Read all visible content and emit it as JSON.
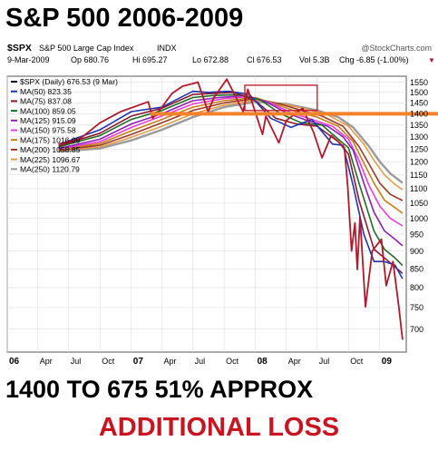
{
  "title": "S&P 500 2006-2009",
  "chart_header": {
    "symbol": "$SPX",
    "name": "S&P 500 Large Cap Index",
    "exchange": "INDX",
    "watermark": "@StockCharts.com",
    "date": "9-Mar-2009",
    "op": "Op 680.76",
    "hi": "Hi 695.27",
    "lo": "Lo 672.88",
    "cl": "Cl 676.53",
    "vol": "Vol 5.3B",
    "chg": "Chg -6.85 (-1.00%)",
    "chg_arrow": "▼"
  },
  "legend": [
    {
      "label": "$SPX (Daily) 676.53 (9 Mar)",
      "color": "#000000"
    },
    {
      "label": "MA(50) 823.35",
      "color": "#1f35b4"
    },
    {
      "label": "MA(75) 837.08",
      "color": "#8b1a2e"
    },
    {
      "label": "MA(100) 859.05",
      "color": "#1e6b25"
    },
    {
      "label": "MA(125) 915.09",
      "color": "#8a22b0"
    },
    {
      "label": "MA(150) 975.58",
      "color": "#e63fd8"
    },
    {
      "label": "MA(175) 1016.09",
      "color": "#c77c1a"
    },
    {
      "label": "MA(200) 1058.85",
      "color": "#9a3a2a"
    },
    {
      "label": "MA(225) 1096.67",
      "color": "#e59a47"
    },
    {
      "label": "MA(250) 1120.79",
      "color": "#9a9a9a"
    }
  ],
  "headline": "1400 TO 675  51% APPROX",
  "subhead": "ADDITIONAL LOSS",
  "colors": {
    "price": "#b2182b",
    "highlight_line": "#f5822a",
    "highlight_box": "#c0122a",
    "grid": "#dddddd",
    "subhead": "#c81522"
  },
  "chart_data": {
    "type": "line",
    "y_scale": "log",
    "ylim": [
      650,
      1580
    ],
    "y_ticks": [
      700,
      750,
      800,
      850,
      900,
      950,
      1000,
      1050,
      1100,
      1150,
      1200,
      1250,
      1300,
      1350,
      1400,
      1450,
      1500,
      1550
    ],
    "x_range": [
      "2006-01-01",
      "2009-03-20"
    ],
    "x_ticks": [
      {
        "label": "06",
        "date": "2006-01-01",
        "bold": true
      },
      {
        "label": "Apr",
        "date": "2006-04-01",
        "bold": false
      },
      {
        "label": "Jul",
        "date": "2006-07-01",
        "bold": false
      },
      {
        "label": "Oct",
        "date": "2006-10-01",
        "bold": false
      },
      {
        "label": "07",
        "date": "2007-01-01",
        "bold": true
      },
      {
        "label": "Apr",
        "date": "2007-04-01",
        "bold": false
      },
      {
        "label": "Jul",
        "date": "2007-07-01",
        "bold": false
      },
      {
        "label": "Oct",
        "date": "2007-10-01",
        "bold": false
      },
      {
        "label": "08",
        "date": "2008-01-01",
        "bold": true
      },
      {
        "label": "Apr",
        "date": "2008-04-01",
        "bold": false
      },
      {
        "label": "Jul",
        "date": "2008-07-01",
        "bold": false
      },
      {
        "label": "Oct",
        "date": "2008-10-01",
        "bold": false
      },
      {
        "label": "09",
        "date": "2009-01-01",
        "bold": true
      }
    ],
    "series": [
      {
        "name": "$SPX (Daily)",
        "color": "#b2182b",
        "width": 1.8,
        "points": [
          [
            "2006-06-01",
            1270
          ],
          [
            "2006-08-01",
            1290
          ],
          [
            "2006-10-01",
            1360
          ],
          [
            "2006-12-01",
            1410
          ],
          [
            "2007-02-20",
            1455
          ],
          [
            "2007-03-05",
            1380
          ],
          [
            "2007-04-01",
            1430
          ],
          [
            "2007-05-01",
            1495
          ],
          [
            "2007-06-01",
            1530
          ],
          [
            "2007-07-16",
            1550
          ],
          [
            "2007-08-15",
            1410
          ],
          [
            "2007-09-01",
            1475
          ],
          [
            "2007-10-09",
            1565
          ],
          [
            "2007-11-26",
            1410
          ],
          [
            "2007-12-10",
            1515
          ],
          [
            "2008-01-22",
            1310
          ],
          [
            "2008-02-01",
            1390
          ],
          [
            "2008-03-10",
            1275
          ],
          [
            "2008-04-01",
            1370
          ],
          [
            "2008-05-19",
            1425
          ],
          [
            "2008-06-20",
            1320
          ],
          [
            "2008-07-15",
            1215
          ],
          [
            "2008-08-11",
            1305
          ],
          [
            "2008-09-01",
            1280
          ],
          [
            "2008-09-19",
            1255
          ],
          [
            "2008-09-29",
            1105
          ],
          [
            "2008-10-10",
            900
          ],
          [
            "2008-10-20",
            985
          ],
          [
            "2008-10-27",
            848
          ],
          [
            "2008-11-04",
            1005
          ],
          [
            "2008-11-20",
            752
          ],
          [
            "2008-12-10",
            900
          ],
          [
            "2009-01-06",
            935
          ],
          [
            "2009-01-20",
            805
          ],
          [
            "2009-02-09",
            870
          ],
          [
            "2009-02-26",
            752
          ],
          [
            "2009-03-09",
            676.53
          ]
        ]
      },
      {
        "name": "MA(50)",
        "color": "#1f35b4",
        "width": 1.6,
        "points": [
          [
            "2006-06-01",
            1268
          ],
          [
            "2006-10-01",
            1330
          ],
          [
            "2007-01-01",
            1410
          ],
          [
            "2007-04-01",
            1430
          ],
          [
            "2007-07-01",
            1505
          ],
          [
            "2007-08-15",
            1500
          ],
          [
            "2007-10-15",
            1505
          ],
          [
            "2007-12-15",
            1490
          ],
          [
            "2008-02-15",
            1380
          ],
          [
            "2008-04-15",
            1340
          ],
          [
            "2008-06-15",
            1375
          ],
          [
            "2008-08-15",
            1270
          ],
          [
            "2008-09-15",
            1265
          ],
          [
            "2008-10-15",
            1110
          ],
          [
            "2008-11-15",
            950
          ],
          [
            "2008-12-15",
            870
          ],
          [
            "2009-01-15",
            870
          ],
          [
            "2009-02-15",
            860
          ],
          [
            "2009-03-09",
            823.35
          ]
        ]
      },
      {
        "name": "MA(75)",
        "color": "#8b1a2e",
        "width": 1.6,
        "points": [
          [
            "2006-06-01",
            1262
          ],
          [
            "2006-10-01",
            1315
          ],
          [
            "2007-01-01",
            1390
          ],
          [
            "2007-04-01",
            1425
          ],
          [
            "2007-07-01",
            1490
          ],
          [
            "2007-09-01",
            1495
          ],
          [
            "2007-11-01",
            1500
          ],
          [
            "2008-01-01",
            1460
          ],
          [
            "2008-03-01",
            1380
          ],
          [
            "2008-05-01",
            1355
          ],
          [
            "2008-07-01",
            1345
          ],
          [
            "2008-09-01",
            1280
          ],
          [
            "2008-10-01",
            1230
          ],
          [
            "2008-11-01",
            1060
          ],
          [
            "2008-12-15",
            905
          ],
          [
            "2009-01-15",
            880
          ],
          [
            "2009-02-15",
            855
          ],
          [
            "2009-03-09",
            837.08
          ]
        ]
      },
      {
        "name": "MA(100)",
        "color": "#1e6b25",
        "width": 1.6,
        "points": [
          [
            "2006-06-01",
            1258
          ],
          [
            "2006-10-01",
            1305
          ],
          [
            "2007-01-01",
            1375
          ],
          [
            "2007-04-01",
            1415
          ],
          [
            "2007-07-01",
            1475
          ],
          [
            "2007-09-01",
            1485
          ],
          [
            "2007-11-15",
            1490
          ],
          [
            "2008-01-15",
            1465
          ],
          [
            "2008-03-15",
            1400
          ],
          [
            "2008-05-15",
            1360
          ],
          [
            "2008-07-15",
            1350
          ],
          [
            "2008-09-01",
            1290
          ],
          [
            "2008-10-01",
            1255
          ],
          [
            "2008-11-01",
            1120
          ],
          [
            "2008-12-15",
            960
          ],
          [
            "2009-01-15",
            905
          ],
          [
            "2009-02-15",
            880
          ],
          [
            "2009-03-09",
            859.05
          ]
        ]
      },
      {
        "name": "MA(125)",
        "color": "#8a22b0",
        "width": 1.6,
        "points": [
          [
            "2006-06-01",
            1252
          ],
          [
            "2006-10-01",
            1290
          ],
          [
            "2007-01-01",
            1355
          ],
          [
            "2007-04-01",
            1400
          ],
          [
            "2007-07-01",
            1460
          ],
          [
            "2007-09-15",
            1475
          ],
          [
            "2007-12-01",
            1485
          ],
          [
            "2008-02-01",
            1455
          ],
          [
            "2008-04-01",
            1405
          ],
          [
            "2008-06-01",
            1370
          ],
          [
            "2008-08-01",
            1345
          ],
          [
            "2008-09-15",
            1300
          ],
          [
            "2008-10-15",
            1245
          ],
          [
            "2008-11-15",
            1120
          ],
          [
            "2008-12-15",
            1020
          ],
          [
            "2009-01-15",
            960
          ],
          [
            "2009-02-15",
            935
          ],
          [
            "2009-03-09",
            915.09
          ]
        ]
      },
      {
        "name": "MA(150)",
        "color": "#e63fd8",
        "width": 1.6,
        "points": [
          [
            "2006-06-01",
            1250
          ],
          [
            "2006-10-01",
            1280
          ],
          [
            "2007-01-01",
            1340
          ],
          [
            "2007-04-01",
            1390
          ],
          [
            "2007-07-01",
            1445
          ],
          [
            "2007-10-01",
            1470
          ],
          [
            "2007-12-15",
            1480
          ],
          [
            "2008-02-15",
            1450
          ],
          [
            "2008-04-15",
            1405
          ],
          [
            "2008-06-15",
            1375
          ],
          [
            "2008-08-15",
            1345
          ],
          [
            "2008-10-01",
            1290
          ],
          [
            "2008-11-01",
            1205
          ],
          [
            "2008-12-01",
            1110
          ],
          [
            "2009-01-01",
            1040
          ],
          [
            "2009-02-01",
            1000
          ],
          [
            "2009-03-09",
            975.58
          ]
        ]
      },
      {
        "name": "MA(175)",
        "color": "#c77c1a",
        "width": 1.6,
        "points": [
          [
            "2006-06-01",
            1248
          ],
          [
            "2006-10-01",
            1272
          ],
          [
            "2007-01-01",
            1325
          ],
          [
            "2007-04-01",
            1375
          ],
          [
            "2007-07-01",
            1430
          ],
          [
            "2007-10-01",
            1460
          ],
          [
            "2008-01-01",
            1475
          ],
          [
            "2008-03-01",
            1445
          ],
          [
            "2008-05-01",
            1410
          ],
          [
            "2008-07-01",
            1385
          ],
          [
            "2008-09-01",
            1345
          ],
          [
            "2008-10-15",
            1280
          ],
          [
            "2008-11-15",
            1195
          ],
          [
            "2008-12-15",
            1120
          ],
          [
            "2009-01-15",
            1060
          ],
          [
            "2009-02-15",
            1035
          ],
          [
            "2009-03-09",
            1016.09
          ]
        ]
      },
      {
        "name": "MA(200)",
        "color": "#9a3a2a",
        "width": 1.6,
        "points": [
          [
            "2006-06-01",
            1245
          ],
          [
            "2006-10-01",
            1265
          ],
          [
            "2007-01-01",
            1310
          ],
          [
            "2007-04-01",
            1360
          ],
          [
            "2007-07-01",
            1415
          ],
          [
            "2007-10-01",
            1450
          ],
          [
            "2008-01-01",
            1470
          ],
          [
            "2008-03-15",
            1445
          ],
          [
            "2008-05-15",
            1415
          ],
          [
            "2008-07-15",
            1390
          ],
          [
            "2008-09-15",
            1345
          ],
          [
            "2008-11-01",
            1260
          ],
          [
            "2008-12-01",
            1190
          ],
          [
            "2009-01-01",
            1120
          ],
          [
            "2009-02-01",
            1080
          ],
          [
            "2009-03-09",
            1058.85
          ]
        ]
      },
      {
        "name": "MA(225)",
        "color": "#e59a47",
        "width": 1.6,
        "points": [
          [
            "2006-06-01",
            1243
          ],
          [
            "2006-10-01",
            1258
          ],
          [
            "2007-01-01",
            1298
          ],
          [
            "2007-04-01",
            1345
          ],
          [
            "2007-07-01",
            1400
          ],
          [
            "2007-10-01",
            1440
          ],
          [
            "2008-01-01",
            1462
          ],
          [
            "2008-04-01",
            1442
          ],
          [
            "2008-06-01",
            1420
          ],
          [
            "2008-08-01",
            1395
          ],
          [
            "2008-10-01",
            1345
          ],
          [
            "2008-11-15",
            1270
          ],
          [
            "2008-12-15",
            1205
          ],
          [
            "2009-01-15",
            1150
          ],
          [
            "2009-02-15",
            1115
          ],
          [
            "2009-03-09",
            1096.67
          ]
        ]
      },
      {
        "name": "MA(250)",
        "color": "#9a9a9a",
        "width": 2.4,
        "points": [
          [
            "2006-06-01",
            1240
          ],
          [
            "2006-10-01",
            1252
          ],
          [
            "2007-01-01",
            1285
          ],
          [
            "2007-04-01",
            1330
          ],
          [
            "2007-07-01",
            1385
          ],
          [
            "2007-10-01",
            1430
          ],
          [
            "2008-01-01",
            1455
          ],
          [
            "2008-04-01",
            1445
          ],
          [
            "2008-07-01",
            1415
          ],
          [
            "2008-09-01",
            1385
          ],
          [
            "2008-10-15",
            1340
          ],
          [
            "2008-12-01",
            1260
          ],
          [
            "2009-01-01",
            1200
          ],
          [
            "2009-02-01",
            1155
          ],
          [
            "2009-03-09",
            1120.79
          ]
        ]
      }
    ],
    "annotations": {
      "horizontal_line": 1400,
      "box": {
        "x0": "2007-12-01",
        "x1": "2008-07-01",
        "y0": 1415,
        "y1": 1535
      }
    }
  }
}
